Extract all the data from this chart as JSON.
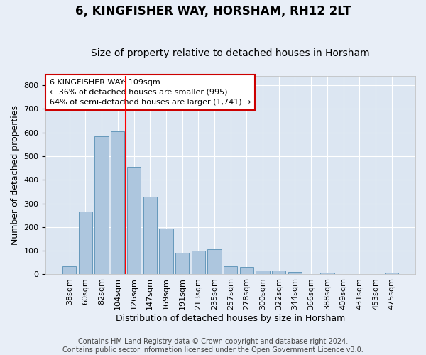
{
  "title": "6, KINGFISHER WAY, HORSHAM, RH12 2LT",
  "subtitle": "Size of property relative to detached houses in Horsham",
  "xlabel": "Distribution of detached houses by size in Horsham",
  "ylabel": "Number of detached properties",
  "footer_line1": "Contains HM Land Registry data © Crown copyright and database right 2024.",
  "footer_line2": "Contains public sector information licensed under the Open Government Licence v3.0.",
  "categories": [
    "38sqm",
    "60sqm",
    "82sqm",
    "104sqm",
    "126sqm",
    "147sqm",
    "169sqm",
    "191sqm",
    "213sqm",
    "235sqm",
    "257sqm",
    "278sqm",
    "300sqm",
    "322sqm",
    "344sqm",
    "366sqm",
    "388sqm",
    "409sqm",
    "431sqm",
    "453sqm",
    "475sqm"
  ],
  "values": [
    35,
    265,
    585,
    605,
    455,
    330,
    195,
    90,
    100,
    105,
    35,
    32,
    17,
    17,
    11,
    0,
    6,
    0,
    0,
    0,
    7
  ],
  "bar_color": "#adc6de",
  "bar_edge_color": "#6699bb",
  "red_line_x": 3.5,
  "annotation_text_line1": "6 KINGFISHER WAY: 109sqm",
  "annotation_text_line2": "← 36% of detached houses are smaller (995)",
  "annotation_text_line3": "64% of semi-detached houses are larger (1,741) →",
  "annotation_box_facecolor": "#ffffff",
  "annotation_box_edgecolor": "#cc0000",
  "ylim": [
    0,
    840
  ],
  "yticks": [
    0,
    100,
    200,
    300,
    400,
    500,
    600,
    700,
    800
  ],
  "bg_color": "#e8eef7",
  "plot_bg_color": "#dce6f2",
  "grid_color": "#ffffff",
  "title_fontsize": 12,
  "subtitle_fontsize": 10,
  "ylabel_fontsize": 9,
  "xlabel_fontsize": 9,
  "tick_fontsize": 8,
  "ann_fontsize": 8,
  "footer_fontsize": 7
}
